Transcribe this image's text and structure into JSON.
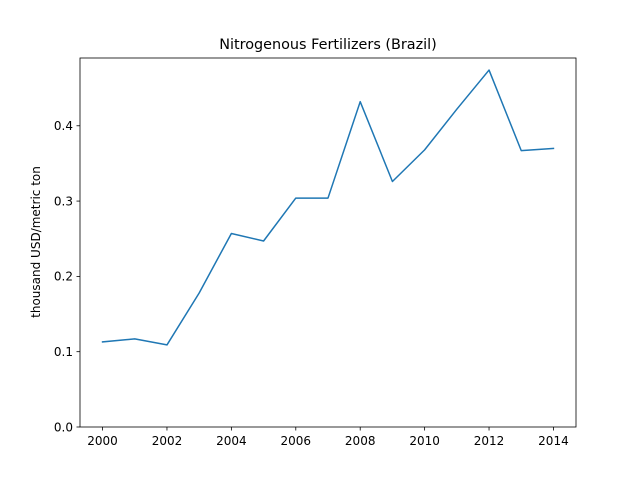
{
  "chart_data": {
    "type": "line",
    "title": "Nitrogenous Fertilizers (Brazil)",
    "xlabel": "",
    "ylabel": "thousand USD/metric ton",
    "xlim": [
      1999.3,
      2014.7
    ],
    "ylim": [
      0,
      0.49
    ],
    "xticks": [
      2000,
      2002,
      2004,
      2006,
      2008,
      2010,
      2012,
      2014
    ],
    "xtick_labels": [
      "2000",
      "2002",
      "2004",
      "2006",
      "2008",
      "2010",
      "2012",
      "2014"
    ],
    "yticks": [
      0,
      0.1,
      0.2,
      0.3,
      0.4
    ],
    "ytick_labels": [
      "0.0",
      "0.1",
      "0.2",
      "0.3",
      "0.4"
    ],
    "grid": false,
    "x": [
      2000,
      2001,
      2002,
      2003,
      2004,
      2005,
      2006,
      2007,
      2008,
      2009,
      2010,
      2011,
      2012,
      2013,
      2014
    ],
    "series": [
      {
        "values": [
          0.113,
          0.117,
          0.109,
          0.178,
          0.257,
          0.247,
          0.304,
          0.304,
          0.432,
          0.326,
          0.368,
          0.422,
          0.474,
          0.367,
          0.37
        ],
        "color": "#1f77b4"
      }
    ]
  }
}
